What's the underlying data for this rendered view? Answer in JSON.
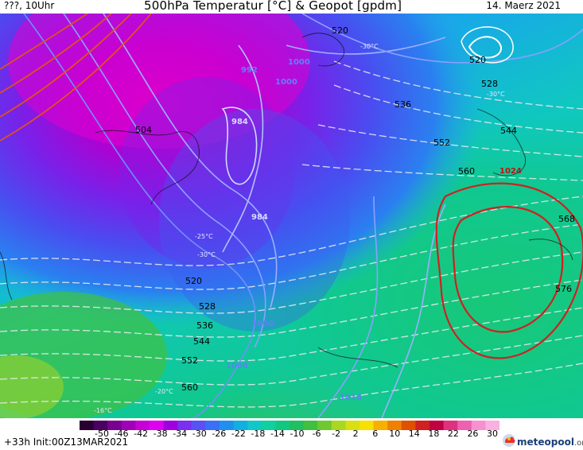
{
  "header": {
    "left": "???, 10Uhr",
    "title": "500hPa Temperatur [°C] & Geopot [gpdm]",
    "date": "14. Maerz 2021"
  },
  "map_labels": {
    "geopot": [
      "520",
      "520",
      "504",
      "528",
      "536",
      "544",
      "552",
      "560",
      "568",
      "576",
      "520",
      "528",
      "536",
      "544",
      "552",
      "560"
    ],
    "pressure": [
      "1000",
      "1000",
      "992",
      "984",
      "984",
      "1000",
      "1008",
      "1016",
      "1024"
    ],
    "temp": [
      "-30°C",
      "-30°C",
      "-30°C",
      "-25°C",
      "-20°C",
      "-16°C"
    ]
  },
  "colorbar": {
    "labels": [
      "-50",
      "-46",
      "-42",
      "-38",
      "-34",
      "-30",
      "-26",
      "-22",
      "-18",
      "-14",
      "-10",
      "-6",
      "-2",
      "2",
      "6",
      "10",
      "14",
      "18",
      "22",
      "26",
      "30"
    ],
    "colors": [
      "#2a0030",
      "#4a0060",
      "#7a0090",
      "#a000b8",
      "#c800d8",
      "#e000f0",
      "#a000e0",
      "#7a30f0",
      "#5a50f8",
      "#3a70f8",
      "#2090f0",
      "#10b0e0",
      "#10c8c8",
      "#10d0a0",
      "#10c880",
      "#20c060",
      "#40c040",
      "#70c830",
      "#a8d820",
      "#d8e010",
      "#f8e000",
      "#f8b000",
      "#f08000",
      "#e05000",
      "#d02020",
      "#c00040",
      "#e03080",
      "#f060b0",
      "#f890d0",
      "#fab0e0"
    ]
  },
  "footer": {
    "init": "+33h Init:00Z13MAR2021",
    "logo_main": "meteopool",
    "logo_suffix": ".org"
  }
}
